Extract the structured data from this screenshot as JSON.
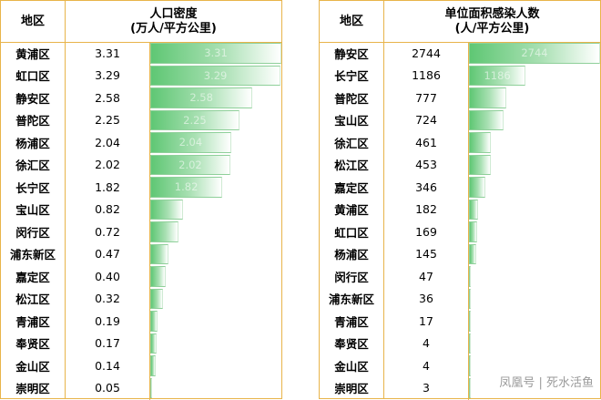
{
  "chart_data": [
    {
      "type": "table",
      "columns": [
        "地区",
        "人口密度\n(万人/平方公里)"
      ],
      "header_region": "地区",
      "header_metric_line1": "人口密度",
      "header_metric_line2": "(万人/平方公里)",
      "rows": [
        {
          "region": "黄浦区",
          "value": "3.31"
        },
        {
          "region": "虹口区",
          "value": "3.29"
        },
        {
          "region": "静安区",
          "value": "2.58"
        },
        {
          "region": "普陀区",
          "value": "2.25"
        },
        {
          "region": "杨浦区",
          "value": "2.04"
        },
        {
          "region": "徐汇区",
          "value": "2.02"
        },
        {
          "region": "长宁区",
          "value": "1.82"
        },
        {
          "region": "宝山区",
          "value": "0.82"
        },
        {
          "region": "闵行区",
          "value": "0.72"
        },
        {
          "region": "浦东新区",
          "value": "0.47"
        },
        {
          "region": "嘉定区",
          "value": "0.40"
        },
        {
          "region": "松江区",
          "value": "0.32"
        },
        {
          "region": "青浦区",
          "value": "0.19"
        },
        {
          "region": "奉贤区",
          "value": "0.17"
        },
        {
          "region": "金山区",
          "value": "0.14"
        },
        {
          "region": "崇明区",
          "value": "0.05"
        }
      ],
      "max": 3.31,
      "bar_color": "#5fc774"
    },
    {
      "type": "table",
      "columns": [
        "地区",
        "单位面积感染人数\n(人/平方公里)"
      ],
      "header_region": "地区",
      "header_metric_line1": "单位面积感染人数",
      "header_metric_line2": "(人/平方公里)",
      "rows": [
        {
          "region": "静安区",
          "value": "2744"
        },
        {
          "region": "长宁区",
          "value": "1186"
        },
        {
          "region": "普陀区",
          "value": "777"
        },
        {
          "region": "宝山区",
          "value": "724"
        },
        {
          "region": "徐汇区",
          "value": "461"
        },
        {
          "region": "松江区",
          "value": "453"
        },
        {
          "region": "嘉定区",
          "value": "346"
        },
        {
          "region": "黄浦区",
          "value": "182"
        },
        {
          "region": "虹口区",
          "value": "169"
        },
        {
          "region": "杨浦区",
          "value": "145"
        },
        {
          "region": "闵行区",
          "value": "47"
        },
        {
          "region": "浦东新区",
          "value": "36"
        },
        {
          "region": "青浦区",
          "value": "17"
        },
        {
          "region": "奉贤区",
          "value": "4"
        },
        {
          "region": "金山区",
          "value": "4"
        },
        {
          "region": "崇明区",
          "value": "3"
        }
      ],
      "max": 2744,
      "bar_color": "#5fc774"
    }
  ],
  "watermark": "凤凰号 | 死水活鱼",
  "border_color": "#e8b44a"
}
